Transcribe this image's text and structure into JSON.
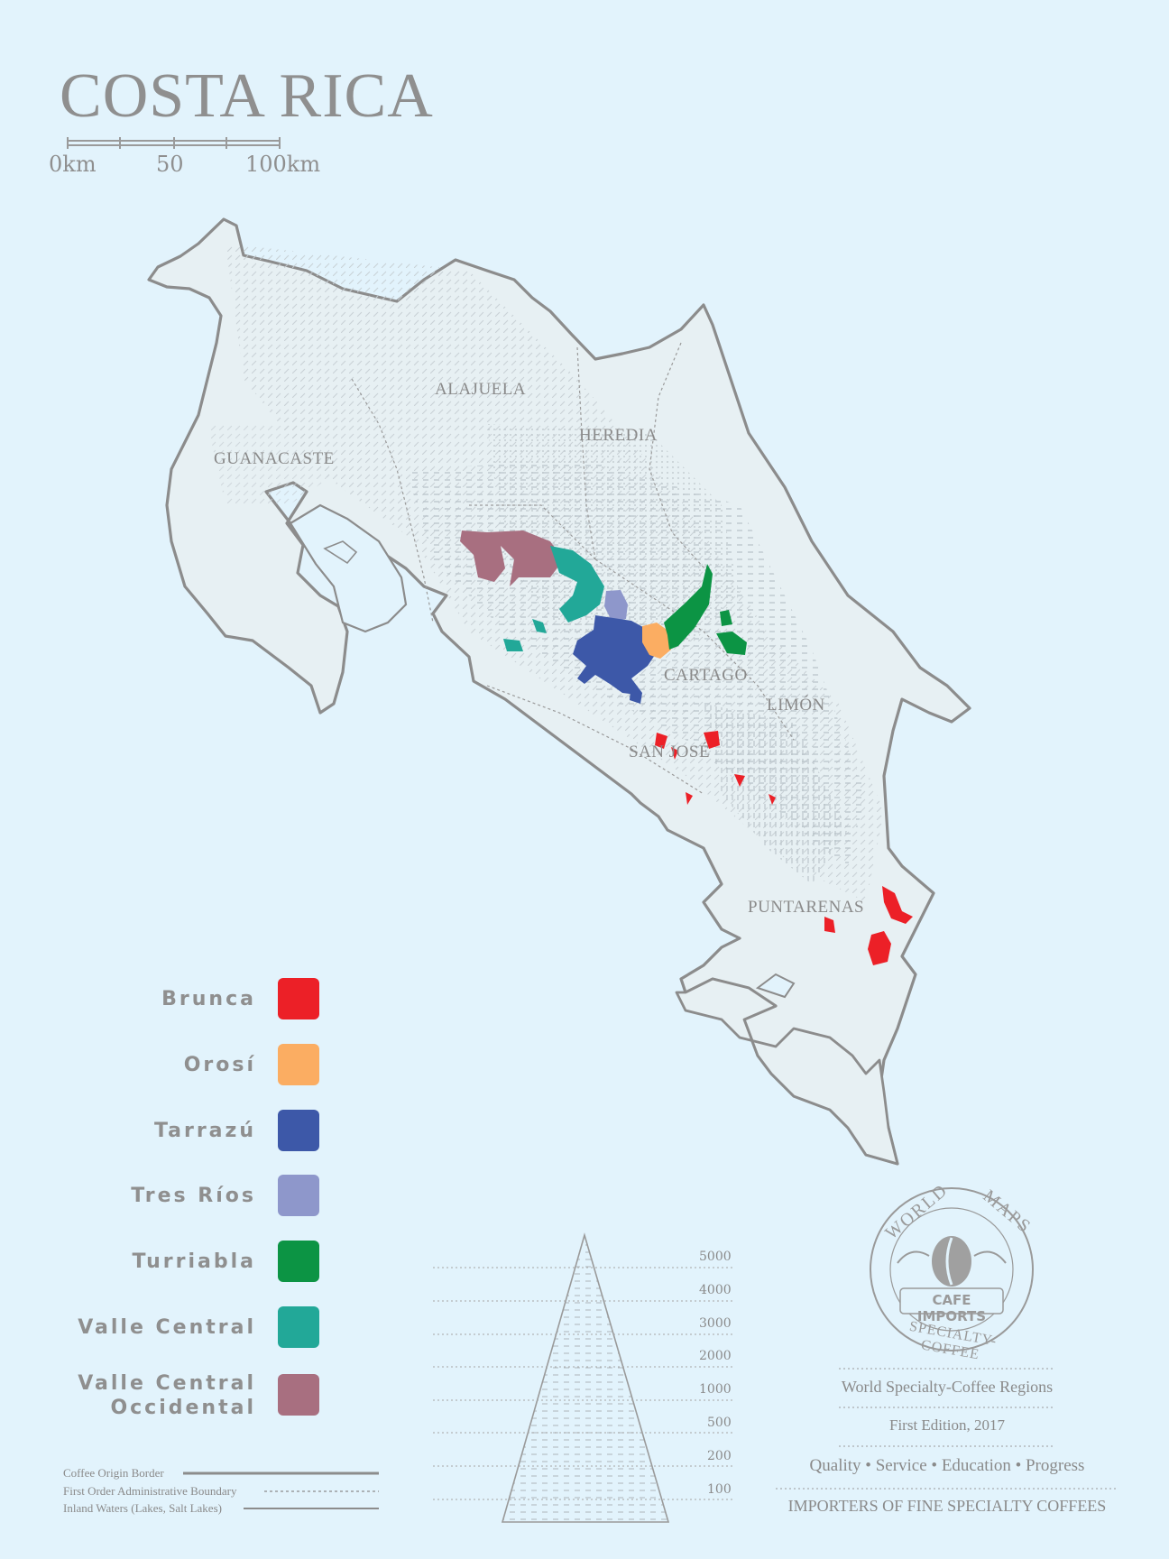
{
  "map": {
    "title": "COSTA RICA",
    "scale_bar": {
      "labels": [
        "0km",
        "50",
        "100km"
      ]
    },
    "provinces": [
      "ALAJUELA",
      "HEREDIA",
      "GUANACASTE",
      "CARTAGO",
      "LIMÓN",
      "SAN JOSÉ",
      "PUNTARENAS"
    ]
  },
  "legend": {
    "items": [
      {
        "label": "Brunca",
        "color": "#ec2027"
      },
      {
        "label": "Orosí",
        "color": "#fbad62"
      },
      {
        "label": "Tarrazú",
        "color": "#3d58a8"
      },
      {
        "label": "Tres Ríos",
        "color": "#8e97cb"
      },
      {
        "label": "Turriabla",
        "color": "#0c9444"
      },
      {
        "label": "Valle Central",
        "color": "#22a898"
      },
      {
        "label": "Valle Central Occidental",
        "color": "#a86f80"
      }
    ]
  },
  "line_key": {
    "items": [
      "Coffee Origin Border",
      "First Order Administrative Boundary",
      "Inland Waters (Lakes, Salt Lakes)"
    ]
  },
  "elevation": {
    "labels": [
      "5000",
      "4000",
      "3000",
      "2000",
      "1000",
      "500",
      "200",
      "100"
    ]
  },
  "seal": {
    "top_left": "WORLD",
    "top_right": "MAPS",
    "center": "CAFE IMPORTS",
    "bottom": "SPECIALTY-COFFEE"
  },
  "info": {
    "series": "World Specialty-Coffee Regions",
    "edition": "First Edition, 2017",
    "motto": "Quality • Service • Education • Progress",
    "tagline": "IMPORTERS OF FINE SPECIALTY COFFEES"
  }
}
